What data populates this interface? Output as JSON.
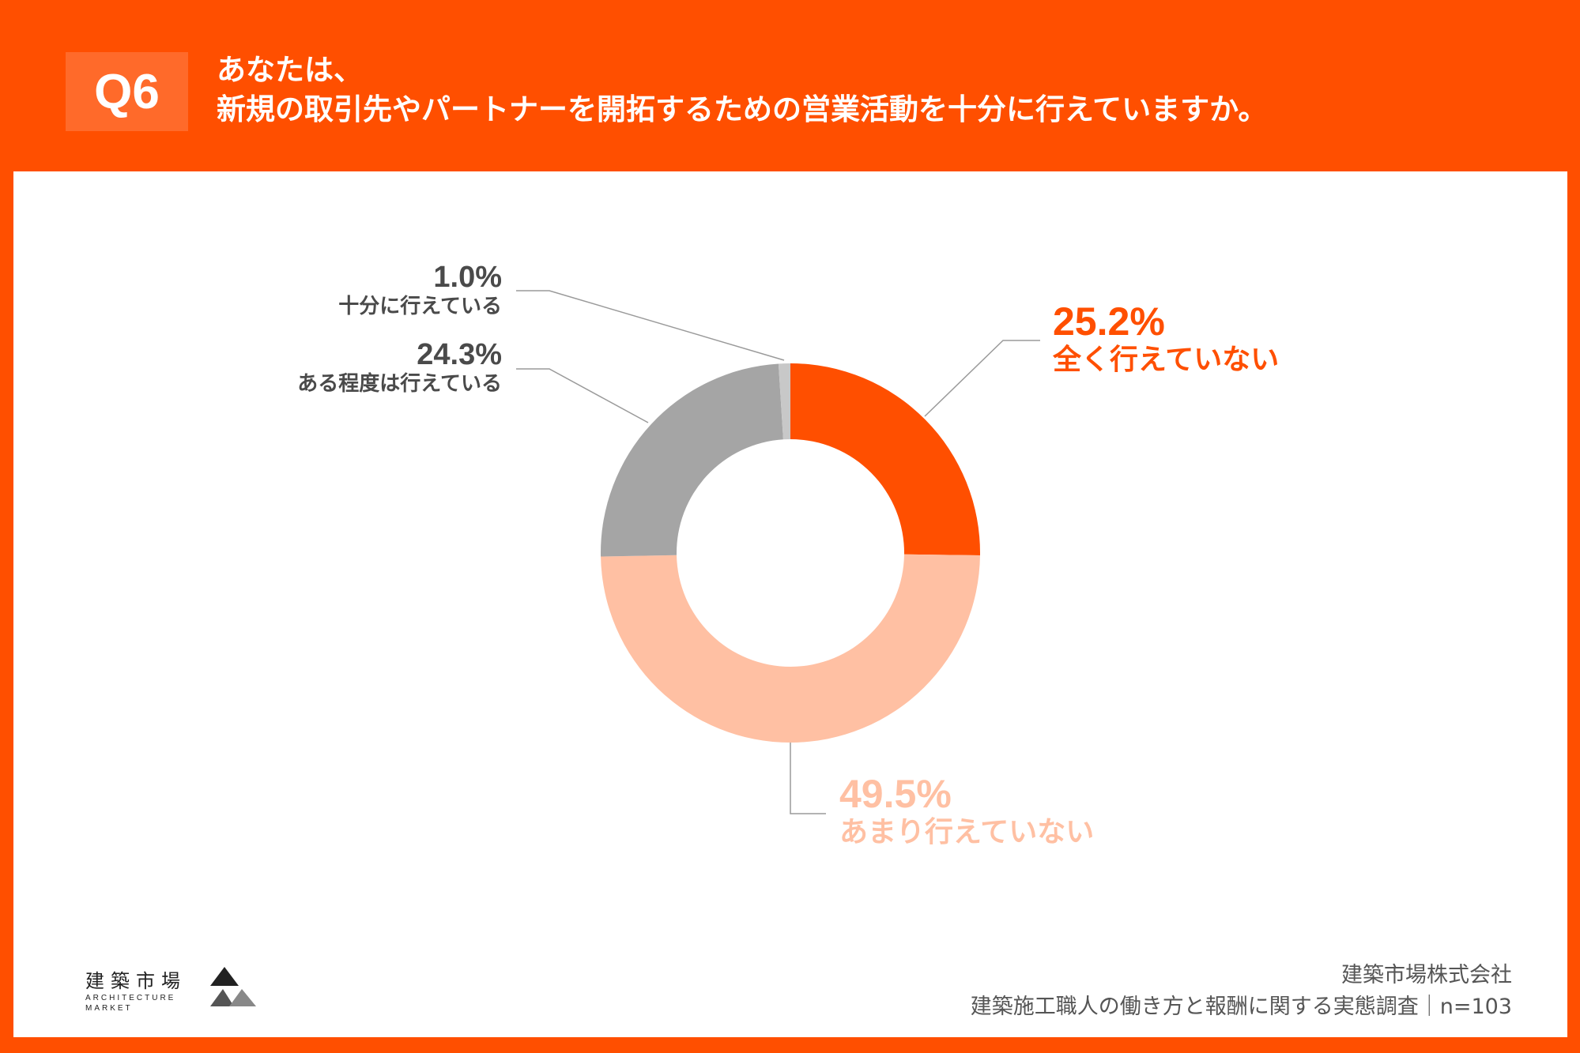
{
  "header": {
    "question_no": "Q6",
    "title_line1": "あなたは、",
    "title_line2": "新規の取引先やパートナーを開拓するための営業活動を十分に行えていますか。"
  },
  "chart_data": {
    "type": "pie",
    "style": "donut",
    "start": "top, clockwise",
    "slices": [
      {
        "label": "全く行えていない",
        "value": 25.2,
        "value_label": "25.2%",
        "color": "#FF4F00"
      },
      {
        "label": "あまり行えていない",
        "value": 49.5,
        "value_label": "49.5%",
        "color": "#FFC0A3"
      },
      {
        "label": "ある程度は行えている",
        "value": 24.3,
        "value_label": "24.3%",
        "color": "#A5A5A5"
      },
      {
        "label": "十分に行えている",
        "value": 1.0,
        "value_label": "1.0%",
        "color": "#C8C8C8"
      }
    ]
  },
  "footer": {
    "company": "建築市場株式会社",
    "survey": "建築施工職人の働き方と報酬に関する実態調査｜n=103"
  },
  "logo": {
    "kanji": "建築市場",
    "en1": "ARCHITECTURE",
    "en2": "MARKET"
  }
}
